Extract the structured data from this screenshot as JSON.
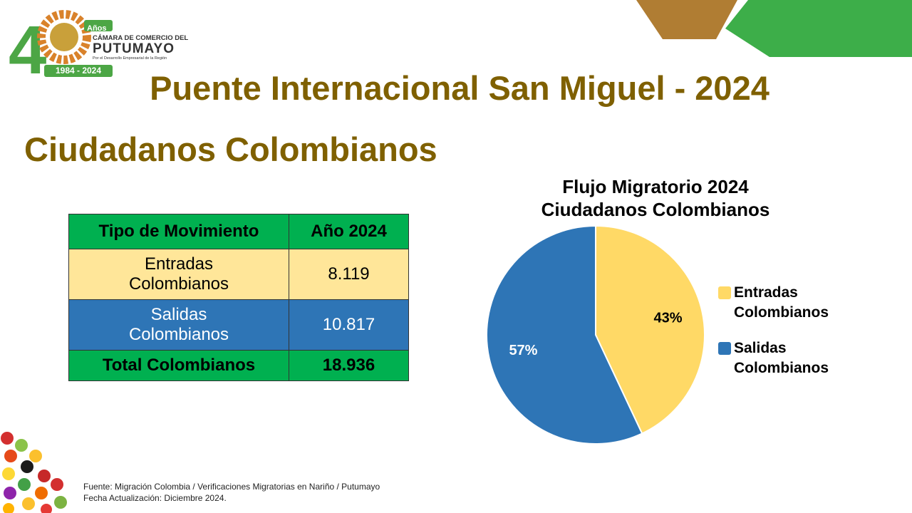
{
  "logo": {
    "years": "Años",
    "line1": "CÁMARA DE COMERCIO DEL",
    "line2": "PUTUMAYO",
    "tagline": "Por el Desarrollo Empresarial de la Región",
    "period": "1984 - 2024"
  },
  "header": {
    "title": "Puente Internacional San Miguel - 2024",
    "subtitle": "Ciudadanos Colombianos"
  },
  "table": {
    "columns": [
      "Tipo de Movimiento",
      "Año 2024"
    ],
    "rows": [
      [
        "Entradas Colombianos",
        "8.119"
      ],
      [
        "Salidas Colombianos",
        "10.817"
      ],
      [
        "Total Colombianos",
        "18.936"
      ]
    ]
  },
  "chart_data": {
    "type": "pie",
    "title": "Flujo Migratorio 2024 Ciudadanos Colombianos",
    "categories": [
      "Entradas Colombianos",
      "Salidas Colombianos"
    ],
    "values": [
      43,
      57
    ],
    "value_labels": [
      "43%",
      "57%"
    ],
    "colors": [
      "#FFD966",
      "#2E75B6"
    ],
    "legend": "right"
  },
  "footer": {
    "source": "Fuente: Migración Colombia / Verificaciones Migratorias en Nariño / Putumayo",
    "updated": "Fecha Actualización: Diciembre 2024."
  }
}
